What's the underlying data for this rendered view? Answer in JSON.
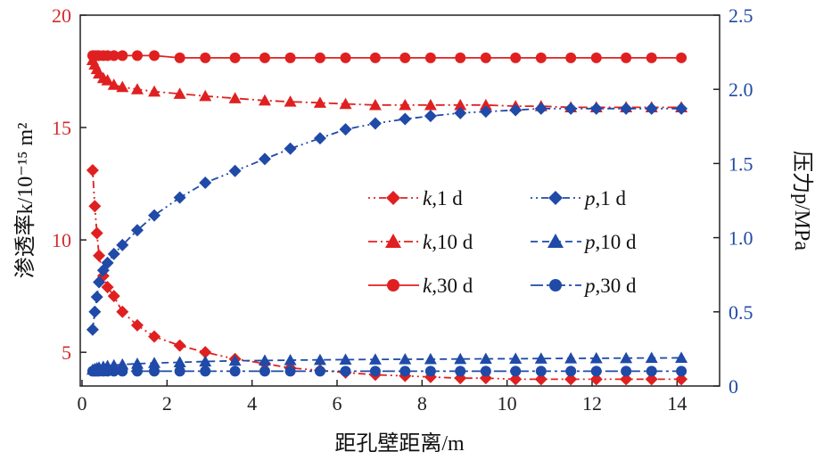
{
  "chart_data": {
    "type": "line",
    "title": "",
    "xlabel": "距孔壁距离/m",
    "ylabel_left": "渗透率k/10⁻¹⁵ m²",
    "ylabel_right": "压力p/MPa",
    "xlim": [
      0,
      15
    ],
    "ylim_left": [
      3.5,
      20
    ],
    "ylim_right": [
      0,
      2.5
    ],
    "x_ticks": [
      "0",
      "2",
      "4",
      "6",
      "8",
      "10",
      "12",
      "14"
    ],
    "y_left_ticks": [
      "5",
      "10",
      "15",
      "20"
    ],
    "y_right_ticks": [
      "0",
      "0.5",
      "1.0",
      "1.5",
      "2.0",
      "2.5"
    ],
    "grid": false,
    "legend_position": "center-right",
    "colors": {
      "permeability": "#e02020",
      "pressure": "#1f4aa8"
    },
    "legend": {
      "k1": {
        "var": "k",
        "rest": ",1 d"
      },
      "k10": {
        "var": "k",
        "rest": ",10 d"
      },
      "k30": {
        "var": "k",
        "rest": ",30 d"
      },
      "p1": {
        "var": "p",
        "rest": ",1 d"
      },
      "p10": {
        "var": "p",
        "rest": ",10 d"
      },
      "p30": {
        "var": "p",
        "rest": ",30 d"
      }
    },
    "series": [
      {
        "name": "k,1 d",
        "axis": "left",
        "marker": "diamond",
        "dash": "dot-dot-dash",
        "color": "#e02020",
        "x": [
          0.25,
          0.3,
          0.35,
          0.4,
          0.5,
          0.6,
          0.75,
          0.95,
          1.3,
          1.7,
          2.3,
          2.9,
          3.6,
          4.3,
          4.9,
          5.6,
          6.2,
          6.9,
          7.6,
          8.2,
          8.9,
          9.5,
          10.2,
          10.8,
          11.5,
          12.1,
          12.8,
          13.4,
          14.1
        ],
        "y": [
          13.1,
          11.5,
          10.3,
          9.3,
          8.4,
          7.9,
          7.5,
          6.8,
          6.2,
          5.7,
          5.3,
          5.0,
          4.7,
          4.5,
          4.3,
          4.2,
          4.1,
          4.0,
          3.95,
          3.9,
          3.85,
          3.85,
          3.8,
          3.8,
          3.8,
          3.8,
          3.8,
          3.8,
          3.8
        ]
      },
      {
        "name": "k,10 d",
        "axis": "left",
        "marker": "triangle",
        "dash": "dash-dot",
        "color": "#e02020",
        "x": [
          0.25,
          0.3,
          0.35,
          0.4,
          0.5,
          0.6,
          0.75,
          0.95,
          1.3,
          1.7,
          2.3,
          2.9,
          3.6,
          4.3,
          4.9,
          5.6,
          6.2,
          6.9,
          7.6,
          8.2,
          8.9,
          9.5,
          10.2,
          10.8,
          11.5,
          12.1,
          12.8,
          13.4,
          14.1
        ],
        "y": [
          18.0,
          17.8,
          17.6,
          17.4,
          17.2,
          17.1,
          16.9,
          16.8,
          16.7,
          16.6,
          16.5,
          16.4,
          16.3,
          16.2,
          16.15,
          16.1,
          16.05,
          16.0,
          16.0,
          16.0,
          16.0,
          16.0,
          15.95,
          15.95,
          15.9,
          15.9,
          15.9,
          15.9,
          15.9
        ]
      },
      {
        "name": "k,30 d",
        "axis": "left",
        "marker": "circle",
        "dash": "solid",
        "color": "#e02020",
        "x": [
          0.25,
          0.3,
          0.35,
          0.4,
          0.5,
          0.6,
          0.75,
          0.95,
          1.3,
          1.7,
          2.3,
          2.9,
          3.6,
          4.3,
          4.9,
          5.6,
          6.2,
          6.9,
          7.6,
          8.2,
          8.9,
          9.5,
          10.2,
          10.8,
          11.5,
          12.1,
          12.8,
          13.4,
          14.1
        ],
        "y": [
          18.2,
          18.2,
          18.2,
          18.2,
          18.2,
          18.2,
          18.2,
          18.2,
          18.2,
          18.2,
          18.1,
          18.1,
          18.1,
          18.1,
          18.1,
          18.1,
          18.1,
          18.1,
          18.1,
          18.1,
          18.1,
          18.1,
          18.1,
          18.1,
          18.1,
          18.1,
          18.1,
          18.1,
          18.1
        ]
      },
      {
        "name": "p,1 d",
        "axis": "right",
        "marker": "diamond",
        "dash": "dot-dot-dash",
        "color": "#1f4aa8",
        "x": [
          0.25,
          0.3,
          0.35,
          0.4,
          0.5,
          0.6,
          0.75,
          0.95,
          1.3,
          1.7,
          2.3,
          2.9,
          3.6,
          4.3,
          4.9,
          5.6,
          6.2,
          6.9,
          7.6,
          8.2,
          8.9,
          9.5,
          10.2,
          10.8,
          11.5,
          12.1,
          12.8,
          13.4,
          14.1
        ],
        "y": [
          0.38,
          0.5,
          0.6,
          0.7,
          0.78,
          0.83,
          0.89,
          0.95,
          1.05,
          1.15,
          1.27,
          1.37,
          1.45,
          1.53,
          1.6,
          1.67,
          1.73,
          1.77,
          1.8,
          1.82,
          1.84,
          1.85,
          1.86,
          1.87,
          1.87,
          1.87,
          1.87,
          1.87,
          1.87
        ]
      },
      {
        "name": "p,10 d",
        "axis": "right",
        "marker": "triangle",
        "dash": "dashed",
        "color": "#1f4aa8",
        "x": [
          0.25,
          0.3,
          0.35,
          0.4,
          0.5,
          0.6,
          0.75,
          0.95,
          1.3,
          1.7,
          2.3,
          2.9,
          3.6,
          4.3,
          4.9,
          5.6,
          6.2,
          6.9,
          7.6,
          8.2,
          8.9,
          9.5,
          10.2,
          10.8,
          11.5,
          12.1,
          12.8,
          13.4,
          14.1
        ],
        "y": [
          0.11,
          0.115,
          0.12,
          0.125,
          0.13,
          0.135,
          0.14,
          0.145,
          0.15,
          0.155,
          0.16,
          0.165,
          0.17,
          0.172,
          0.174,
          0.176,
          0.178,
          0.179,
          0.18,
          0.181,
          0.182,
          0.183,
          0.184,
          0.185,
          0.186,
          0.187,
          0.188,
          0.189,
          0.19
        ]
      },
      {
        "name": "p,30 d",
        "axis": "right",
        "marker": "circle",
        "dash": "long-dash-dot",
        "color": "#1f4aa8",
        "x": [
          0.25,
          0.3,
          0.35,
          0.4,
          0.5,
          0.6,
          0.75,
          0.95,
          1.3,
          1.7,
          2.3,
          2.9,
          3.6,
          4.3,
          4.9,
          5.6,
          6.2,
          6.9,
          7.6,
          8.2,
          8.9,
          9.5,
          10.2,
          10.8,
          11.5,
          12.1,
          12.8,
          13.4,
          14.1
        ],
        "y": [
          0.1,
          0.1,
          0.1,
          0.1,
          0.1,
          0.1,
          0.1,
          0.1,
          0.1,
          0.1,
          0.1,
          0.1,
          0.1,
          0.1,
          0.1,
          0.1,
          0.1,
          0.1,
          0.1,
          0.1,
          0.1,
          0.1,
          0.1,
          0.1,
          0.1,
          0.1,
          0.1,
          0.1,
          0.1
        ]
      }
    ]
  }
}
